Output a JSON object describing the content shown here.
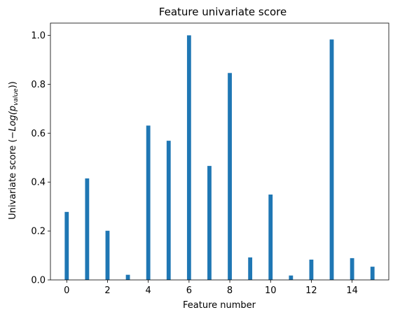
{
  "chart_data": {
    "type": "bar",
    "title": "Feature univariate score",
    "xlabel": "Feature number",
    "ylabel": {
      "prefix": "Univariate score (",
      "math": "−Log(p",
      "subscript": "value",
      "suffix": "))"
    },
    "x": [
      0,
      1,
      2,
      3,
      4,
      5,
      6,
      7,
      8,
      9,
      10,
      11,
      12,
      13,
      14,
      15
    ],
    "values": [
      0.278,
      0.415,
      0.201,
      0.021,
      0.631,
      0.569,
      1.0,
      0.466,
      0.846,
      0.092,
      0.349,
      0.018,
      0.083,
      0.983,
      0.089,
      0.054
    ],
    "bar_width": 0.2,
    "xlim": [
      -0.8,
      15.8
    ],
    "ylim": [
      0,
      1.05
    ],
    "xticks": [
      0,
      2,
      4,
      6,
      8,
      10,
      12,
      14
    ],
    "yticks": [
      0.0,
      0.2,
      0.4,
      0.6,
      0.8,
      1.0
    ],
    "ytick_labels": [
      "0.0",
      "0.2",
      "0.4",
      "0.6",
      "0.8",
      "1.0"
    ],
    "grid": false,
    "bar_color": "#1f77b4"
  }
}
